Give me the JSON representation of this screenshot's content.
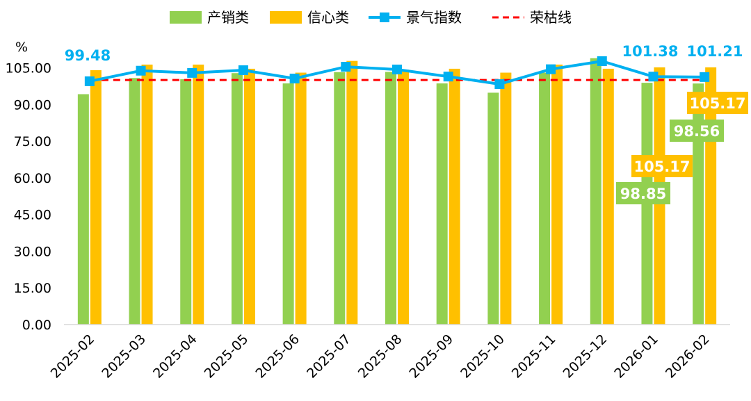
{
  "chart_data": {
    "type": "bar",
    "unit_label": "%",
    "categories": [
      "2025-02",
      "2025-03",
      "2025-04",
      "2025-05",
      "2025-06",
      "2025-07",
      "2025-08",
      "2025-09",
      "2025-10",
      "2025-11",
      "2025-12",
      "2026-01",
      "2026-02"
    ],
    "ylim": [
      0,
      120
    ],
    "yticks": [
      "0.00",
      "15.00",
      "30.00",
      "45.00",
      "60.00",
      "75.00",
      "90.00",
      "105.00"
    ],
    "grid": false,
    "legend_position": "top",
    "series": [
      {
        "name": "产销类",
        "kind": "bar",
        "color": "#92D050",
        "values": [
          94.2,
          100.8,
          100.3,
          102.8,
          98.6,
          103.2,
          103.3,
          98.6,
          94.8,
          103.0,
          108.9,
          98.85,
          98.56
        ]
      },
      {
        "name": "信心类",
        "kind": "bar",
        "color": "#FFC000",
        "values": [
          104.0,
          106.3,
          106.3,
          104.6,
          103.0,
          107.8,
          104.2,
          104.6,
          103.0,
          106.3,
          104.6,
          105.17,
          105.17
        ]
      },
      {
        "name": "景气指数",
        "kind": "line",
        "color": "#00B0F0",
        "values": [
          99.48,
          103.8,
          102.9,
          104.0,
          100.6,
          105.4,
          104.3,
          101.4,
          98.3,
          104.4,
          107.7,
          101.38,
          101.21
        ]
      },
      {
        "name": "荣枯线",
        "kind": "dashed",
        "color": "#FF0000",
        "value": 100
      }
    ],
    "annotations": [
      {
        "text": "99.48",
        "series": "景气指数",
        "index": 0
      },
      {
        "text": "101.38",
        "series": "景气指数",
        "index": 11
      },
      {
        "text": "101.21",
        "series": "景气指数",
        "index": 12
      },
      {
        "text": "105.17",
        "series": "信心类",
        "index": 11
      },
      {
        "text": "105.17",
        "series": "信心类",
        "index": 12
      },
      {
        "text": "98.85",
        "series": "产销类",
        "index": 11
      },
      {
        "text": "98.56",
        "series": "产销类",
        "index": 12
      }
    ]
  }
}
